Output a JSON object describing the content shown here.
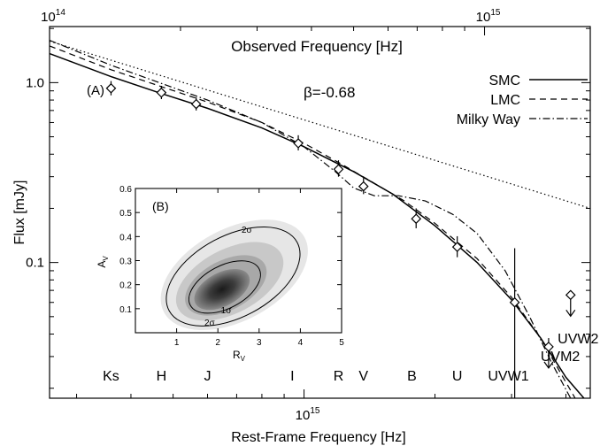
{
  "chart_data": [
    {
      "type": "scatter",
      "panel_label": "(A)",
      "xlabel_bottom": "Rest-Frame Frequency [Hz]",
      "xlabel_top": "Observed Frequency [Hz]",
      "ylabel": "Flux [mJy]",
      "x_scale": "log",
      "y_scale": "log",
      "bottom_xlim": [
        260000000000000.0,
        4550000000000000.0
      ],
      "top_xlim": [
        100000000000000.0,
        1750000000000000.0
      ],
      "ylim": [
        0.0176,
        2.05
      ],
      "bottom_ticks": [
        {
          "value": 1000000000000000.0,
          "label": "10"
        }
      ],
      "bottom_tick_exponents": [
        "15"
      ],
      "top_ticks": [
        {
          "value": 100000000000000.0,
          "label": "10"
        },
        {
          "value": 1000000000000000.0,
          "label": "10"
        }
      ],
      "top_tick_exponents": [
        "14",
        "15"
      ],
      "y_ticks": [
        {
          "value": 0.1,
          "label": "0.1"
        },
        {
          "value": 1.0,
          "label": "1.0"
        }
      ],
      "annotation": "β=-0.68",
      "legend_position": "top-right",
      "legend": [
        {
          "name": "SMC",
          "dash": "solid"
        },
        {
          "name": "LMC",
          "dash": "dashed"
        },
        {
          "name": "Milky Way",
          "dash": "dashdot"
        }
      ],
      "filters": [
        {
          "name": "Ks",
          "x": 360000000000000.0
        },
        {
          "name": "H",
          "x": 470000000000000.0
        },
        {
          "name": "J",
          "x": 600000000000000.0
        },
        {
          "name": "I",
          "x": 940000000000000.0
        },
        {
          "name": "R",
          "x": 1200000000000000.0
        },
        {
          "name": "V",
          "x": 1370000000000000.0
        },
        {
          "name": "B",
          "x": 1770000000000000.0
        },
        {
          "name": "U",
          "x": 2250000000000000.0
        },
        {
          "name": "UVW1",
          "x": 2950000000000000.0
        },
        {
          "name": "UVM2",
          "x": 3700000000000000.0
        },
        {
          "name": "UVW2",
          "x": 4050000000000000.0
        }
      ],
      "points": [
        {
          "x": 360000000000000.0,
          "y": 0.93,
          "yerr": [
            0.08,
            0.09
          ]
        },
        {
          "x": 470000000000000.0,
          "y": 0.88,
          "yerr": [
            0.07,
            0.08
          ]
        },
        {
          "x": 565000000000000.0,
          "y": 0.76,
          "yerr": [
            0.06,
            0.07
          ]
        },
        {
          "x": 970000000000000.0,
          "y": 0.46,
          "yerr": [
            0.04,
            0.05
          ]
        },
        {
          "x": 1200000000000000.0,
          "y": 0.33,
          "yerr": [
            0.03,
            0.04
          ]
        },
        {
          "x": 1370000000000000.0,
          "y": 0.265,
          "yerr": [
            0.025,
            0.03
          ]
        },
        {
          "x": 1810000000000000.0,
          "y": 0.175,
          "yerr": [
            0.02,
            0.025
          ]
        },
        {
          "x": 2250000000000000.0,
          "y": 0.122,
          "yerr": [
            0.015,
            0.018
          ]
        },
        {
          "x": 3050000000000000.0,
          "y": 0.06,
          "yerr": [
            0.0424,
            0.06
          ]
        },
        {
          "x": 3650000000000000.0,
          "y": 0.034,
          "yerr": [
            0.004,
            0.004
          ]
        }
      ],
      "upper_limits": [
        {
          "x": 3650000000000000.0,
          "y": 0.034
        },
        {
          "x": 4100000000000000.0,
          "y": 0.066
        }
      ],
      "powerlaw_line": {
        "style": "dotted",
        "x": [
          260000000000000.0,
          4550000000000000.0
        ],
        "y": [
          1.7,
          0.2
        ]
      },
      "series": [
        {
          "name": "SMC",
          "dash": "solid",
          "x": [
            260000000000000.0,
            360000000000000.0,
            470000000000000.0,
            600000000000000.0,
            800000000000000.0,
            1000000000000000.0,
            1300000000000000.0,
            1600000000000000.0,
            2000000000000000.0,
            2500000000000000.0,
            3000000000000000.0,
            3500000000000000.0,
            4000000000000000.0,
            4400000000000000.0
          ],
          "y": [
            1.45,
            1.08,
            0.87,
            0.72,
            0.56,
            0.44,
            0.32,
            0.24,
            0.16,
            0.1,
            0.062,
            0.038,
            0.023,
            0.0176
          ]
        },
        {
          "name": "LMC",
          "dash": "dashed",
          "x": [
            260000000000000.0,
            360000000000000.0,
            470000000000000.0,
            600000000000000.0,
            800000000000000.0,
            1000000000000000.0,
            1200000000000000.0,
            1400000000000000.0,
            1700000000000000.0,
            2000000000000000.0,
            2500000000000000.0,
            3000000000000000.0,
            3500000000000000.0,
            3900000000000000.0,
            4200000000000000.0
          ],
          "y": [
            1.6,
            1.18,
            0.95,
            0.78,
            0.6,
            0.46,
            0.36,
            0.29,
            0.22,
            0.165,
            0.105,
            0.064,
            0.038,
            0.024,
            0.0176
          ]
        },
        {
          "name": "Milky Way",
          "dash": "dashdot",
          "x": [
            260000000000000.0,
            360000000000000.0,
            470000000000000.0,
            600000000000000.0,
            800000000000000.0,
            1000000000000000.0,
            1180000000000000.0,
            1300000000000000.0,
            1450000000000000.0,
            1650000000000000.0,
            1900000000000000.0,
            2200000000000000.0,
            2500000000000000.0,
            2900000000000000.0,
            3300000000000000.0,
            3700000000000000.0,
            4100000000000000.0
          ],
          "y": [
            1.72,
            1.25,
            0.99,
            0.8,
            0.6,
            0.44,
            0.32,
            0.26,
            0.235,
            0.235,
            0.22,
            0.185,
            0.145,
            0.09,
            0.05,
            0.028,
            0.0176
          ]
        }
      ]
    },
    {
      "type": "contour",
      "panel_label": "(B)",
      "xlabel": "R",
      "xlabel_sub": "V",
      "ylabel": "A",
      "ylabel_sub": "V",
      "xlim": [
        0,
        5
      ],
      "ylim": [
        0,
        0.6
      ],
      "xticks": [
        1,
        2,
        3,
        4,
        5
      ],
      "yticks": [
        0.1,
        0.2,
        0.3,
        0.4,
        0.5,
        0.6
      ],
      "peak": {
        "x": 2.1,
        "y": 0.18
      },
      "contour_labels": [
        {
          "text": "2σ",
          "x": 2.7,
          "y": 0.43
        },
        {
          "text": "1σ",
          "x": 2.2,
          "y": 0.095
        },
        {
          "text": "2σ",
          "x": 1.8,
          "y": 0.045
        }
      ]
    }
  ]
}
